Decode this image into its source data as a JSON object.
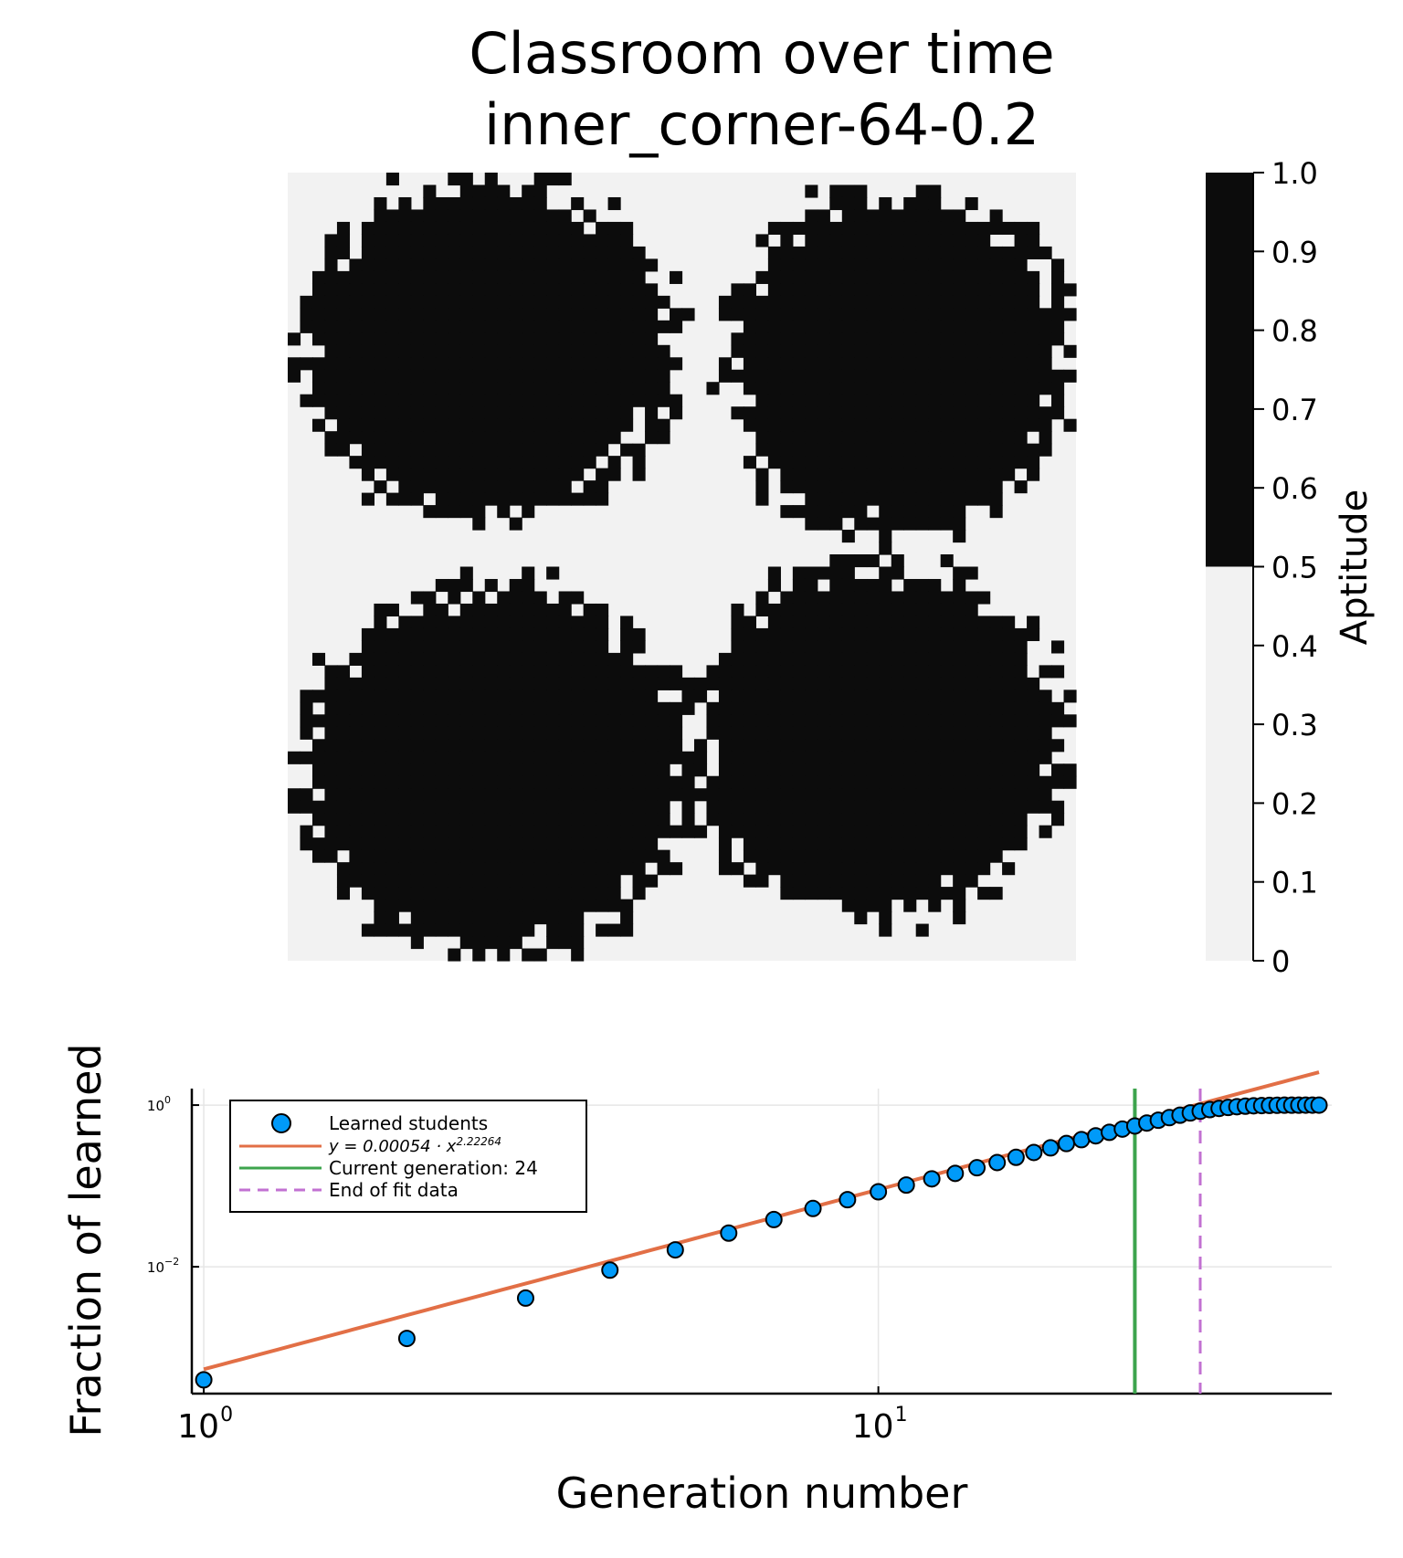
{
  "colors": {
    "learned": "#0c0c0c",
    "not_learned": "#f2f2f2",
    "scatter": "#009af9",
    "fit": "#e26f46",
    "current": "#3da44d",
    "end_fit": "#c271d2"
  },
  "chart_data": [
    {
      "type": "heatmap",
      "title_lines": [
        "Classroom over time",
        "inner_corner-64-0.2"
      ],
      "grid_size": 64,
      "values": "binary aptitude field: 0 or 1 per cell",
      "blobs": [
        {
          "position": "top-left",
          "value": 1
        },
        {
          "position": "top-right",
          "value": 1
        },
        {
          "position": "bottom-left",
          "value": 1
        },
        {
          "position": "bottom-right",
          "value": 1
        }
      ],
      "colorbar": {
        "label": "Aptitude",
        "ticks": [
          "0",
          "0.1",
          "0.2",
          "0.3",
          "0.4",
          "0.5",
          "0.6",
          "0.7",
          "0.8",
          "0.9",
          "1.0"
        ],
        "range": [
          0,
          1
        ],
        "threshold": 0.5
      }
    },
    {
      "type": "scatter",
      "xlabel": "Generation number",
      "ylabel": "Fraction of learned",
      "xscale": "log10",
      "yscale": "log10",
      "xlim": [
        0.96,
        47
      ],
      "ylim": [
        0.00027,
        1.6
      ],
      "grid": true,
      "legend_position": "top-left",
      "xticks": [
        {
          "base": "10",
          "exp": "0",
          "value": 1
        },
        {
          "base": "10",
          "exp": "1",
          "value": 10
        }
      ],
      "yticks": [
        {
          "base": "10",
          "exp": "0",
          "value": 1
        },
        {
          "base": "10",
          "exp": "−2",
          "value": 0.01
        }
      ],
      "legend": {
        "scatter_label": "Learned students",
        "fit_label": "y = 0.00054 · x^2.22264",
        "current_label": "Current generation: 24",
        "end_label": "End of fit data"
      },
      "series": [
        {
          "name": "Learned students",
          "x": [
            1,
            2,
            3,
            4,
            5,
            6,
            7,
            8,
            9,
            10,
            11,
            12,
            13,
            14,
            15,
            16,
            17,
            18,
            19,
            20,
            21,
            22,
            23,
            24,
            25,
            26,
            27,
            28,
            29,
            30,
            31,
            32,
            33,
            34,
            35,
            36,
            37,
            38,
            39,
            40,
            41,
            42,
            43,
            44,
            45
          ],
          "y": [
            0.0004,
            0.0013,
            0.0041,
            0.0091,
            0.0162,
            0.0261,
            0.0384,
            0.0526,
            0.0676,
            0.0847,
            0.1026,
            0.1224,
            0.1431,
            0.1679,
            0.1948,
            0.2262,
            0.2594,
            0.2956,
            0.3345,
            0.3737,
            0.4169,
            0.4606,
            0.5053,
            0.5515,
            0.6001,
            0.6498,
            0.7002,
            0.7501,
            0.8001,
            0.8401,
            0.8801,
            0.9101,
            0.9351,
            0.9551,
            0.9701,
            0.9801,
            0.9871,
            0.9921,
            0.9951,
            0.9971,
            0.9981,
            0.9991,
            0.9996,
            0.9999,
            1.0
          ]
        },
        {
          "name": "y = 0.00054 · x^2.22264",
          "fit": {
            "a": 0.00054,
            "b": 2.22264,
            "x_range": [
              1,
              45
            ]
          }
        }
      ],
      "vlines": [
        {
          "name": "Current generation: 24",
          "x": 24,
          "style": "solid"
        },
        {
          "name": "End of fit data",
          "x": 30,
          "style": "dashed"
        }
      ]
    }
  ]
}
